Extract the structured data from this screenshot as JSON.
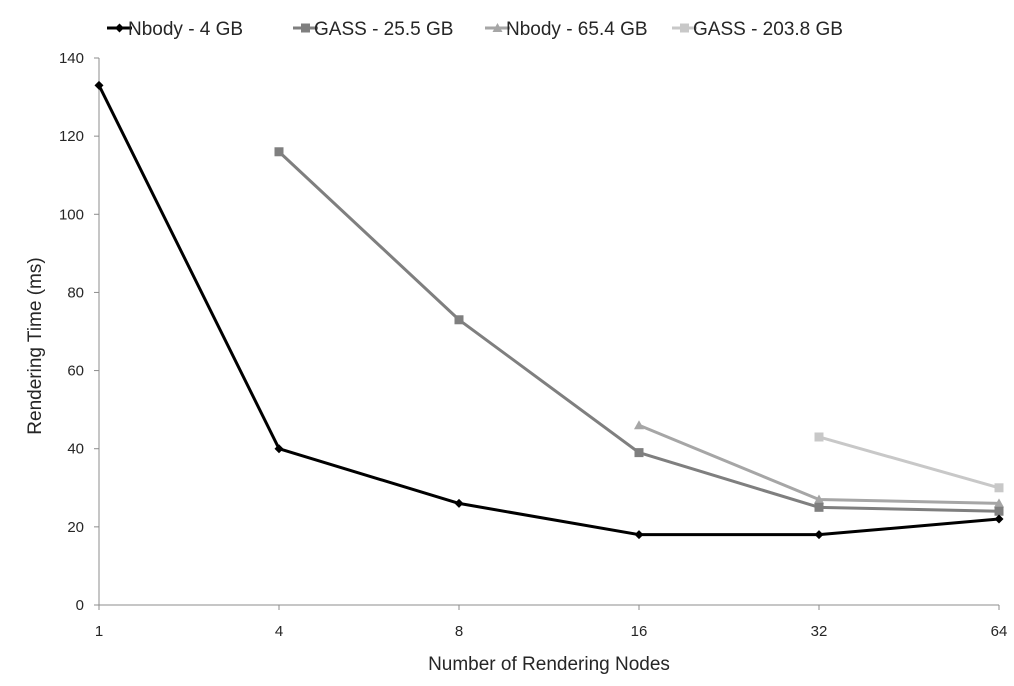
{
  "chart_data": {
    "type": "line",
    "title": "",
    "xlabel": "Number of Rendering Nodes",
    "ylabel": "Rendering Time (ms)",
    "categories": [
      "1",
      "4",
      "8",
      "16",
      "32",
      "64"
    ],
    "ylim": [
      0,
      140
    ],
    "yticks": [
      0,
      20,
      40,
      60,
      80,
      100,
      120,
      140
    ],
    "grid": false,
    "legend_position": "top",
    "series": [
      {
        "name": "Nbody - 4 GB",
        "marker": "diamond",
        "color": "#000000",
        "values": [
          133,
          40,
          26,
          18,
          18,
          22
        ]
      },
      {
        "name": "GASS - 25.5 GB",
        "marker": "square",
        "color": "#7f7f7f",
        "values": [
          null,
          116,
          73,
          39,
          25,
          24
        ]
      },
      {
        "name": "Nbody - 65.4 GB",
        "marker": "triangle",
        "color": "#a6a6a6",
        "values": [
          null,
          null,
          null,
          46,
          27,
          26
        ]
      },
      {
        "name": "GASS - 203.8 GB",
        "marker": "square",
        "color": "#c8c8c8",
        "values": [
          null,
          null,
          null,
          null,
          43,
          30
        ]
      }
    ]
  }
}
